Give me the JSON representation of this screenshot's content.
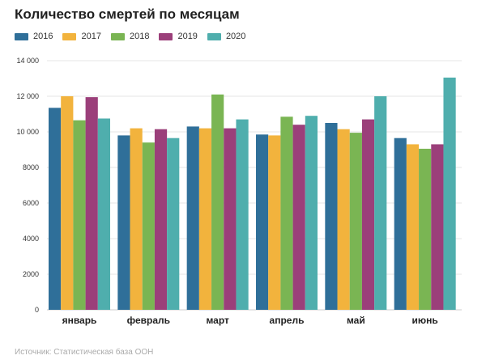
{
  "chart_data": {
    "type": "bar",
    "title": "Количество смертей по месяцам",
    "source": "Источник: Статистическая база ООН",
    "categories": [
      "январь",
      "февраль",
      "март",
      "апрель",
      "май",
      "июнь"
    ],
    "series": [
      {
        "name": "2016",
        "color": "#2f6f99",
        "values": [
          11350,
          9800,
          10300,
          9850,
          10500,
          9650
        ]
      },
      {
        "name": "2017",
        "color": "#f2b33d",
        "values": [
          12000,
          10200,
          10200,
          9800,
          10150,
          9300
        ]
      },
      {
        "name": "2018",
        "color": "#7ab553",
        "values": [
          10650,
          9400,
          12100,
          10850,
          9950,
          9050
        ]
      },
      {
        "name": "2019",
        "color": "#9b3f7a",
        "values": [
          11950,
          10150,
          10200,
          10400,
          10700,
          9300
        ]
      },
      {
        "name": "2020",
        "color": "#4faead",
        "values": [
          10750,
          9650,
          10700,
          10900,
          12000,
          13050
        ]
      }
    ],
    "yticks": [
      "0",
      "2000",
      "4000",
      "6000",
      "8000",
      "10 000",
      "12 000",
      "14 000"
    ],
    "ylim": [
      0,
      14000
    ],
    "grid": true,
    "legend_position": "top-left"
  }
}
